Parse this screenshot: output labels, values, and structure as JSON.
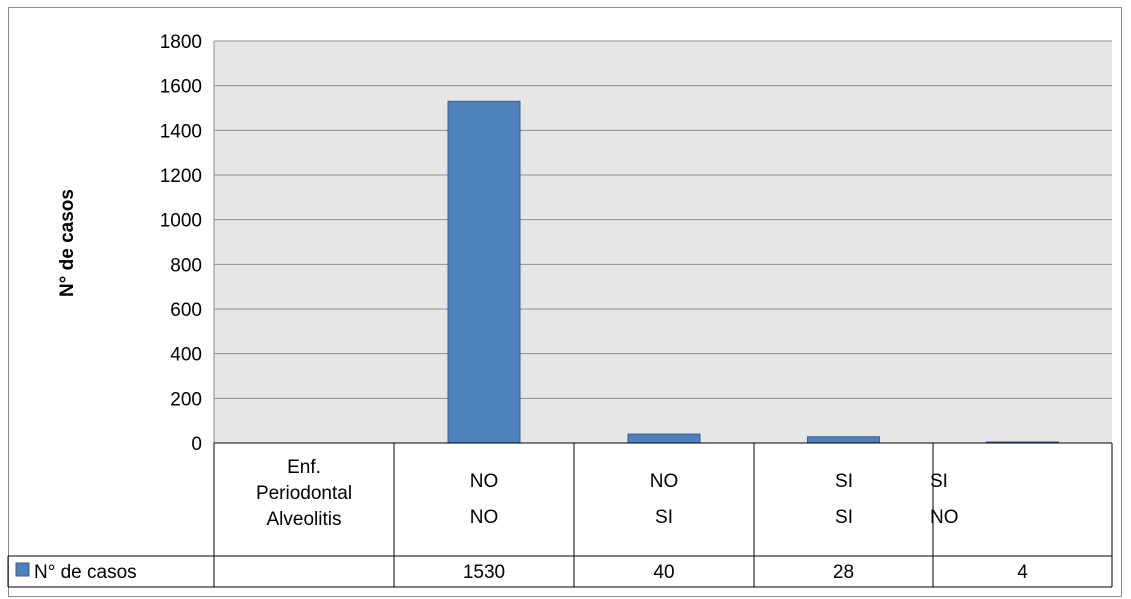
{
  "chart_data": {
    "type": "bar",
    "title": "",
    "xlabel": "",
    "ylabel": "N° de casos",
    "ylim": [
      0,
      1800
    ],
    "yticks": [
      0,
      200,
      400,
      600,
      800,
      1000,
      1200,
      1400,
      1600,
      1800
    ],
    "grid": true,
    "legend": "data-table-left",
    "table_header": {
      "label_lines": [
        "Enf.",
        "Periodontal",
        "Alveolitis"
      ]
    },
    "categories": [
      {
        "lines": [
          "NO",
          "NO"
        ]
      },
      {
        "lines": [
          "NO",
          "SI"
        ]
      },
      {
        "lines": [
          "SI",
          "SI"
        ]
      },
      {
        "lines": [
          "SI",
          "NO"
        ]
      }
    ],
    "series": [
      {
        "name": "N° de casos",
        "values": [
          1530,
          40,
          28,
          4
        ],
        "color": "#4f81bd"
      }
    ],
    "colors": {
      "plot_bg": "#e6e6e6",
      "bar": "#4f81bd",
      "bar_edge": "#385d8a",
      "grid": "#8c8c8c"
    }
  }
}
